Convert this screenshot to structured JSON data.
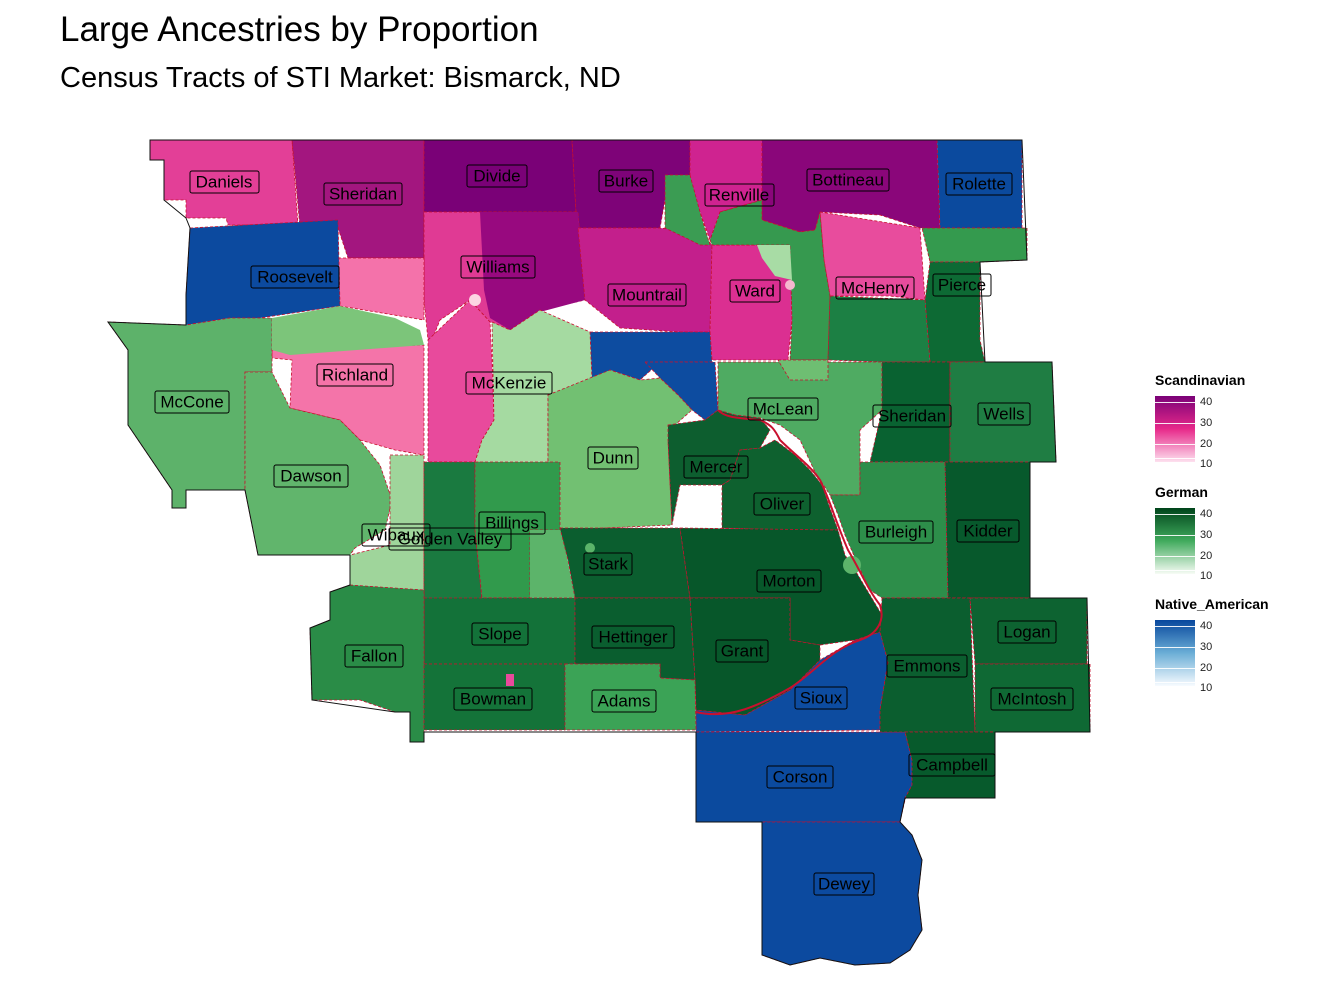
{
  "title": "Large Ancestries by Proportion",
  "subtitle": "Census Tracts of STI Market: Bismarck, ND",
  "legend": [
    {
      "name": "Scandinavian",
      "ticks": [
        "40",
        "30",
        "20",
        "10"
      ],
      "colors": [
        "#7a0177",
        "#e7298a",
        "#fde0ef"
      ]
    },
    {
      "name": "German",
      "ticks": [
        "40",
        "30",
        "20",
        "10"
      ],
      "colors": [
        "#00441b",
        "#41ab5d",
        "#f7fcf5"
      ]
    },
    {
      "name": "Native_American",
      "ticks": [
        "40",
        "30",
        "20",
        "10"
      ],
      "colors": [
        "#08479d",
        "#6baed6",
        "#f7fbff"
      ]
    }
  ],
  "counties": {
    "daniels": "Daniels",
    "sheridan_mt": "Sheridan",
    "divide": "Divide",
    "burke": "Burke",
    "renville": "Renville",
    "bottineau": "Bottineau",
    "rolette": "Rolette",
    "roosevelt": "Roosevelt",
    "williams": "Williams",
    "mountrail": "Mountrail",
    "ward": "Ward",
    "mchenry": "McHenry",
    "pierce": "Pierce",
    "richland": "Richland",
    "mccone": "McCone",
    "mckenzie": "McKenzie",
    "mclean": "McLean",
    "sheridan_nd": "Sheridan",
    "wells": "Wells",
    "dunn": "Dunn",
    "mercer": "Mercer",
    "dawson": "Dawson",
    "oliver": "Oliver",
    "billings": "Billings",
    "burleigh": "Burleigh",
    "kidder": "Kidder",
    "wibaux": "Wibaux",
    "golden_valley": "Golden Valley",
    "stark": "Stark",
    "morton": "Morton",
    "slope": "Slope",
    "hettinger": "Hettinger",
    "logan": "Logan",
    "fallon": "Fallon",
    "grant": "Grant",
    "emmons": "Emmons",
    "sioux": "Sioux",
    "bowman": "Bowman",
    "adams": "Adams",
    "mcintosh": "McIntosh",
    "campbell": "Campbell",
    "corson": "Corson",
    "dewey": "Dewey"
  }
}
